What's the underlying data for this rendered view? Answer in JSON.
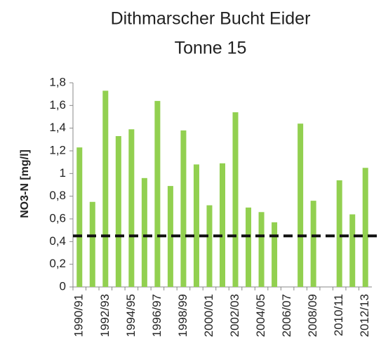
{
  "chart_data": {
    "type": "bar",
    "title": [
      "Dithmarscher  Bucht Eider",
      "Tonne 15"
    ],
    "y_label": "NO3-N [mg/l]",
    "categories": [
      "1990/91",
      null,
      "1992/93",
      null,
      "1994/95",
      null,
      "1996/97",
      null,
      "1998/99",
      null,
      "2000/01",
      null,
      "2002/03",
      null,
      "2004/05",
      null,
      "2006/07",
      null,
      "2008/09",
      null,
      "2010/11",
      null,
      "2012/13"
    ],
    "values": [
      1.23,
      0.75,
      1.73,
      1.33,
      1.39,
      0.96,
      1.64,
      0.89,
      1.38,
      1.08,
      0.72,
      1.09,
      1.54,
      0.7,
      0.66,
      0.57,
      null,
      1.44,
      0.76,
      null,
      0.94,
      0.64,
      1.05
    ],
    "color": "#92d050",
    "reference_line": 0.45,
    "reference_color": "#111111",
    "ylim": [
      0,
      1.8
    ],
    "yticks": [
      0,
      {
        "value": 0.2,
        "label": "0,2"
      },
      {
        "value": 0.4,
        "label": "0,4"
      },
      {
        "value": 0.6,
        "label": "0,6"
      },
      {
        "value": 0.8,
        "label": "0,8"
      },
      1,
      {
        "value": 1.2,
        "label": "1,2"
      },
      {
        "value": 1.4,
        "label": "1,4"
      },
      {
        "value": 1.6,
        "label": "1,6"
      },
      {
        "value": 1.8,
        "label": "1,8"
      }
    ],
    "grid": false
  }
}
